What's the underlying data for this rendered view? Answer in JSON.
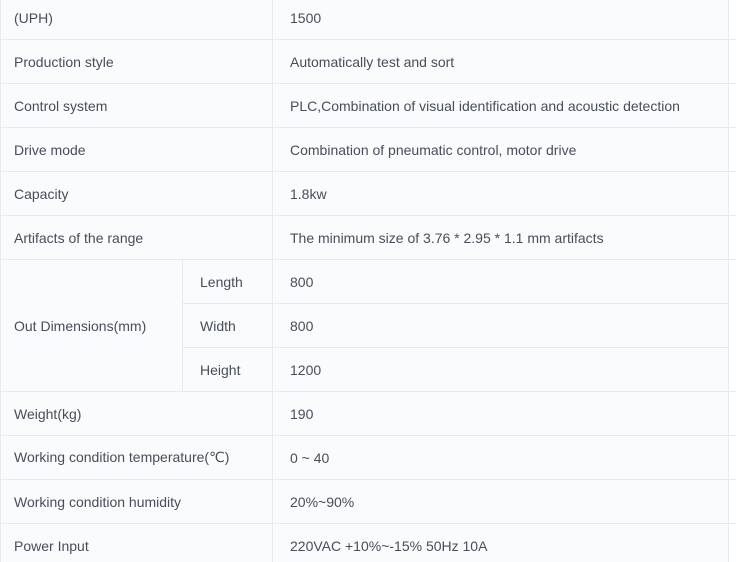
{
  "spec_table": {
    "rows_top": [
      {
        "label": "(UPH)",
        "value": "1500"
      },
      {
        "label": "Production style",
        "value": "Automatically test and sort"
      },
      {
        "label": "Control system",
        "value": "PLC,Combination of visual identification and acoustic detection"
      },
      {
        "label": "Drive mode",
        "value": "Combination of pneumatic control, motor drive"
      },
      {
        "label": "Capacity",
        "value": "1.8kw"
      },
      {
        "label": "Artifacts of the range",
        "value": "The minimum size of 3.76 * 2.95 * 1.1 mm artifacts"
      }
    ],
    "dimensions_group": {
      "label": "Out Dimensions(mm)",
      "sub_rows": [
        {
          "label": "Length",
          "value": "800"
        },
        {
          "label": "Width",
          "value": "800"
        },
        {
          "label": "Height",
          "value": "1200"
        }
      ]
    },
    "rows_bottom": [
      {
        "label": "Weight(kg)",
        "value": "190"
      },
      {
        "label": "Working condition temperature(℃)",
        "value": "0 ~ 40"
      },
      {
        "label": "Working condition humidity",
        "value": "20%~90%"
      },
      {
        "label": "Power Input",
        "value": "220VAC +10%~-15% 50Hz 10A"
      }
    ],
    "colors": {
      "cell_background": "#fafbfc",
      "border": "#e8eaec",
      "text": "#474e59",
      "page_background": "#ffffff"
    }
  }
}
